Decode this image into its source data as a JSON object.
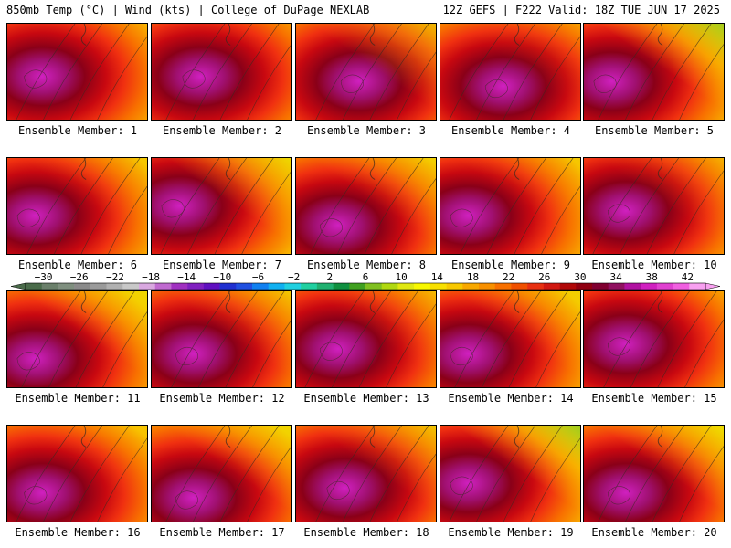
{
  "header": {
    "left_title": "850mb Temp (°C) | Wind (kts) | College of DuPage NEXLAB",
    "right_title": "12Z GEFS | F222 Valid: 18Z TUE JUN 17 2025"
  },
  "colorbar": {
    "tick_labels": [
      "-30",
      "-26",
      "-22",
      "-18",
      "-14",
      "-10",
      "-6",
      "-2",
      "2",
      "6",
      "10",
      "14",
      "18",
      "22",
      "26",
      "30",
      "34",
      "38",
      "42"
    ],
    "min": -32,
    "max": 44,
    "step": 2,
    "colors": [
      "#4a6b4a",
      "#6a7f6a",
      "#7f8f7f",
      "#8a8a8a",
      "#9a9a9a",
      "#b0b0b0",
      "#c8c8c8",
      "#d9a8e0",
      "#c06ad0",
      "#a030c0",
      "#8020c0",
      "#6010c0",
      "#2030d0",
      "#2050e0",
      "#1080f0",
      "#10b0f0",
      "#20d0e0",
      "#20d0a0",
      "#20b070",
      "#109040",
      "#40a020",
      "#80c020",
      "#b0d810",
      "#e0e810",
      "#f8f800",
      "#f8e000",
      "#f8c800",
      "#f8a800",
      "#f89000",
      "#f87000",
      "#f05000",
      "#e83010",
      "#d01810",
      "#b00808",
      "#900010",
      "#800030",
      "#901060",
      "#b010a0",
      "#d020c0",
      "#e040d0",
      "#f060e0",
      "#f8a0f0"
    ]
  },
  "members": [
    {
      "label": "Ensemble Member: 1"
    },
    {
      "label": "Ensemble Member: 2"
    },
    {
      "label": "Ensemble Member: 3"
    },
    {
      "label": "Ensemble Member: 4"
    },
    {
      "label": "Ensemble Member: 5"
    },
    {
      "label": "Ensemble Member: 6"
    },
    {
      "label": "Ensemble Member: 7"
    },
    {
      "label": "Ensemble Member: 8"
    },
    {
      "label": "Ensemble Member: 9"
    },
    {
      "label": "Ensemble Member: 10"
    },
    {
      "label": "Ensemble Member: 11"
    },
    {
      "label": "Ensemble Member: 12"
    },
    {
      "label": "Ensemble Member: 13"
    },
    {
      "label": "Ensemble Member: 14"
    },
    {
      "label": "Ensemble Member: 15"
    },
    {
      "label": "Ensemble Member: 16"
    },
    {
      "label": "Ensemble Member: 17"
    },
    {
      "label": "Ensemble Member: 18"
    },
    {
      "label": "Ensemble Member: 19"
    },
    {
      "label": "Ensemble Member: 20"
    }
  ]
}
